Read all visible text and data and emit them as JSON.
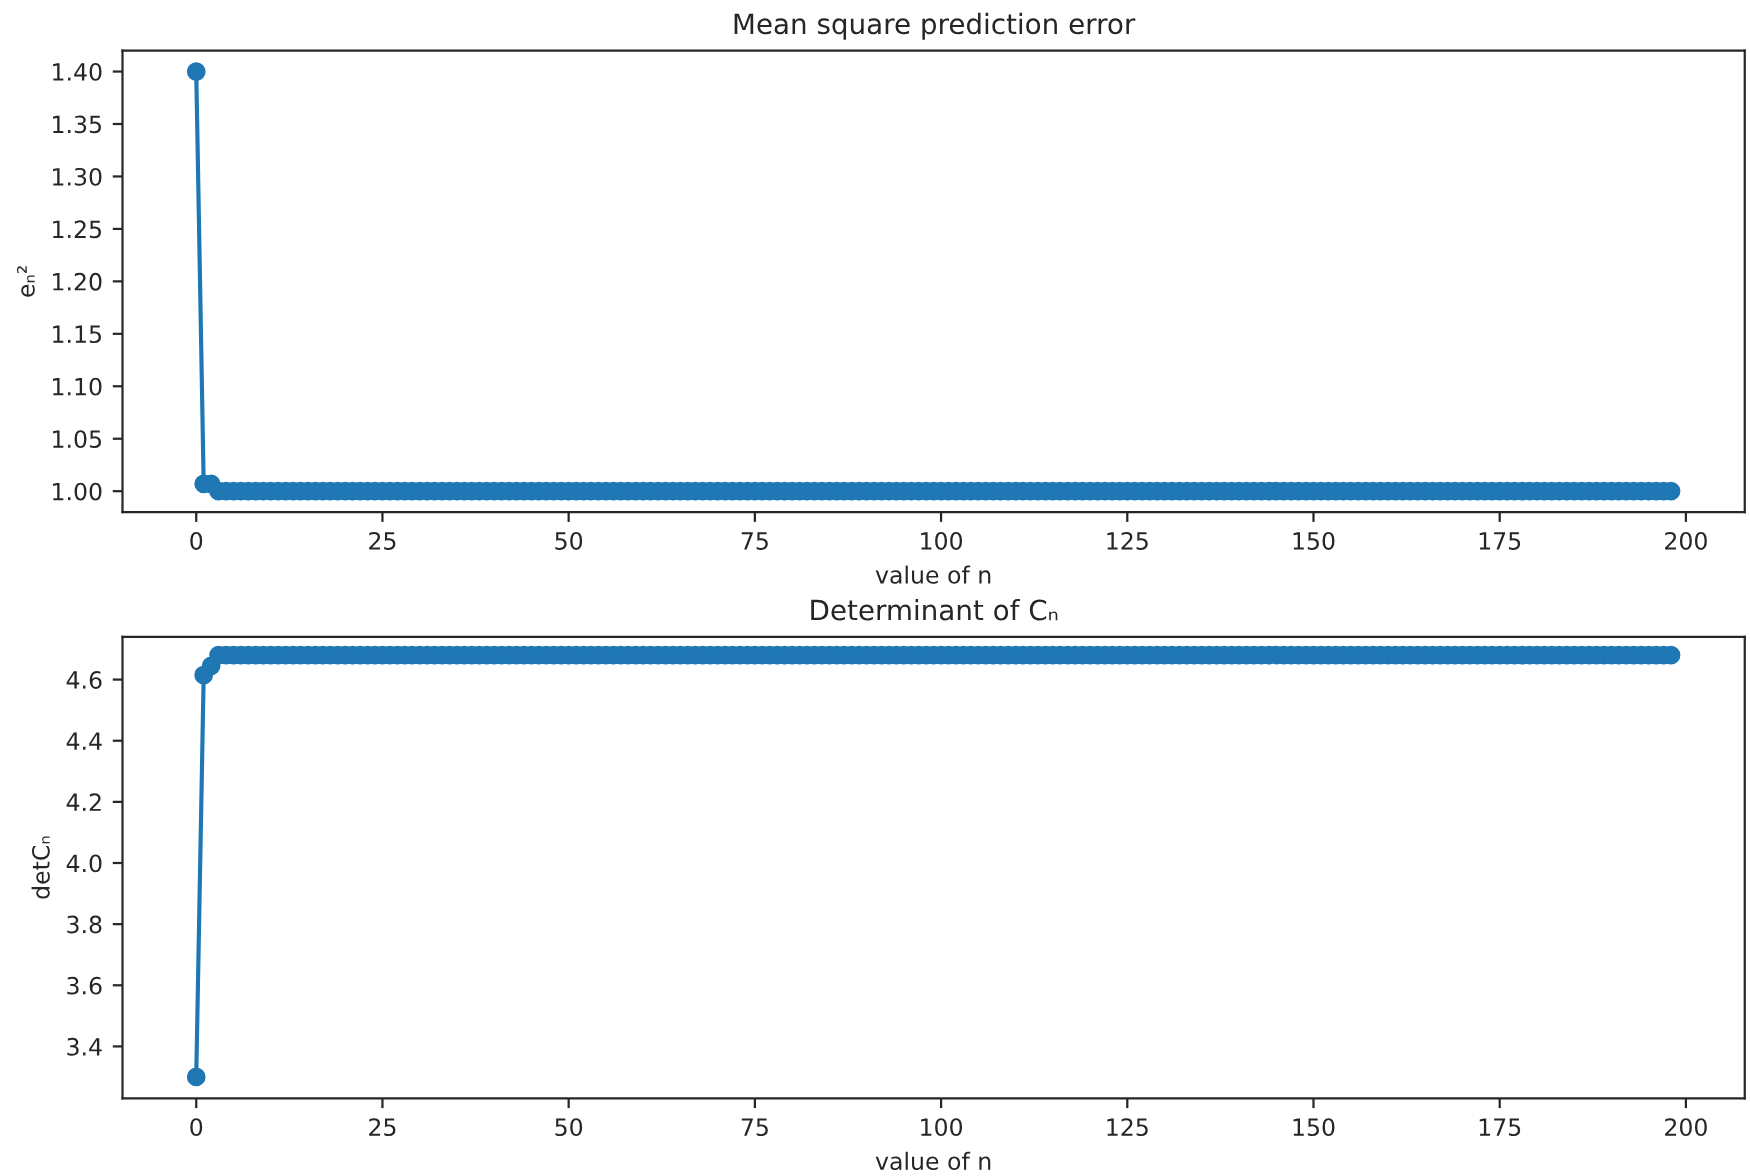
{
  "chart_data": [
    {
      "type": "line",
      "title": "Mean square prediction error",
      "xlabel": "value of n",
      "ylabel": "eₙ²",
      "marker": "circle",
      "line_style": "solid",
      "grid": false,
      "xlim": [
        -9.9,
        207.9
      ],
      "xticks": [
        0,
        25,
        50,
        75,
        100,
        125,
        150,
        175,
        200
      ],
      "ylim": [
        0.98,
        1.42
      ],
      "yticks": [
        {
          "value": 1.0,
          "label": "1.00"
        },
        {
          "value": 1.05,
          "label": "1.05"
        },
        {
          "value": 1.1,
          "label": "1.10"
        },
        {
          "value": 1.15,
          "label": "1.15"
        },
        {
          "value": 1.2,
          "label": "1.20"
        },
        {
          "value": 1.25,
          "label": "1.25"
        },
        {
          "value": 1.3,
          "label": "1.30"
        },
        {
          "value": 1.35,
          "label": "1.35"
        },
        {
          "value": 1.4,
          "label": "1.40"
        }
      ],
      "series": [
        {
          "color": "#1f77b4",
          "x": [
            0,
            1,
            2,
            3,
            4,
            5,
            6,
            7,
            8,
            9,
            10,
            11,
            12,
            13,
            14,
            15,
            16,
            17,
            18,
            19,
            20,
            21,
            22,
            23,
            24,
            25,
            26,
            27,
            28,
            29,
            30,
            31,
            32,
            33,
            34,
            35,
            36,
            37,
            38,
            39,
            40,
            41,
            42,
            43,
            44,
            45,
            46,
            47,
            48,
            49,
            50,
            51,
            52,
            53,
            54,
            55,
            56,
            57,
            58,
            59,
            60,
            61,
            62,
            63,
            64,
            65,
            66,
            67,
            68,
            69,
            70,
            71,
            72,
            73,
            74,
            75,
            76,
            77,
            78,
            79,
            80,
            81,
            82,
            83,
            84,
            85,
            86,
            87,
            88,
            89,
            90,
            91,
            92,
            93,
            94,
            95,
            96,
            97,
            98,
            99,
            100,
            101,
            102,
            103,
            104,
            105,
            106,
            107,
            108,
            109,
            110,
            111,
            112,
            113,
            114,
            115,
            116,
            117,
            118,
            119,
            120,
            121,
            122,
            123,
            124,
            125,
            126,
            127,
            128,
            129,
            130,
            131,
            132,
            133,
            134,
            135,
            136,
            137,
            138,
            139,
            140,
            141,
            142,
            143,
            144,
            145,
            146,
            147,
            148,
            149,
            150,
            151,
            152,
            153,
            154,
            155,
            156,
            157,
            158,
            159,
            160,
            161,
            162,
            163,
            164,
            165,
            166,
            167,
            168,
            169,
            170,
            171,
            172,
            173,
            174,
            175,
            176,
            177,
            178,
            179,
            180,
            181,
            182,
            183,
            184,
            185,
            186,
            187,
            188,
            189,
            190,
            191,
            192,
            193,
            194,
            195,
            196,
            197,
            198
          ],
          "values": [
            1.4,
            1.007,
            1.007,
            1.0,
            1.0,
            1.0,
            1.0,
            1.0,
            1.0,
            1.0,
            1.0,
            1.0,
            1.0,
            1.0,
            1.0,
            1.0,
            1.0,
            1.0,
            1.0,
            1.0,
            1.0,
            1.0,
            1.0,
            1.0,
            1.0,
            1.0,
            1.0,
            1.0,
            1.0,
            1.0,
            1.0,
            1.0,
            1.0,
            1.0,
            1.0,
            1.0,
            1.0,
            1.0,
            1.0,
            1.0,
            1.0,
            1.0,
            1.0,
            1.0,
            1.0,
            1.0,
            1.0,
            1.0,
            1.0,
            1.0,
            1.0,
            1.0,
            1.0,
            1.0,
            1.0,
            1.0,
            1.0,
            1.0,
            1.0,
            1.0,
            1.0,
            1.0,
            1.0,
            1.0,
            1.0,
            1.0,
            1.0,
            1.0,
            1.0,
            1.0,
            1.0,
            1.0,
            1.0,
            1.0,
            1.0,
            1.0,
            1.0,
            1.0,
            1.0,
            1.0,
            1.0,
            1.0,
            1.0,
            1.0,
            1.0,
            1.0,
            1.0,
            1.0,
            1.0,
            1.0,
            1.0,
            1.0,
            1.0,
            1.0,
            1.0,
            1.0,
            1.0,
            1.0,
            1.0,
            1.0,
            1.0,
            1.0,
            1.0,
            1.0,
            1.0,
            1.0,
            1.0,
            1.0,
            1.0,
            1.0,
            1.0,
            1.0,
            1.0,
            1.0,
            1.0,
            1.0,
            1.0,
            1.0,
            1.0,
            1.0,
            1.0,
            1.0,
            1.0,
            1.0,
            1.0,
            1.0,
            1.0,
            1.0,
            1.0,
            1.0,
            1.0,
            1.0,
            1.0,
            1.0,
            1.0,
            1.0,
            1.0,
            1.0,
            1.0,
            1.0,
            1.0,
            1.0,
            1.0,
            1.0,
            1.0,
            1.0,
            1.0,
            1.0,
            1.0,
            1.0,
            1.0,
            1.0,
            1.0,
            1.0,
            1.0,
            1.0,
            1.0,
            1.0,
            1.0,
            1.0,
            1.0,
            1.0,
            1.0,
            1.0,
            1.0,
            1.0,
            1.0,
            1.0,
            1.0,
            1.0,
            1.0,
            1.0,
            1.0,
            1.0,
            1.0,
            1.0,
            1.0,
            1.0,
            1.0,
            1.0,
            1.0,
            1.0,
            1.0,
            1.0,
            1.0,
            1.0,
            1.0,
            1.0,
            1.0,
            1.0,
            1.0,
            1.0,
            1.0,
            1.0,
            1.0,
            1.0,
            1.0,
            1.0,
            1.0
          ]
        }
      ]
    },
    {
      "type": "line",
      "title": "Determinant of Cₙ",
      "xlabel": "value of n",
      "ylabel": "detCₙ",
      "marker": "circle",
      "line_style": "solid",
      "grid": false,
      "xlim": [
        -9.9,
        207.9
      ],
      "xticks": [
        0,
        25,
        50,
        75,
        100,
        125,
        150,
        175,
        200
      ],
      "ylim": [
        3.23,
        4.74
      ],
      "yticks": [
        3.4,
        3.6,
        3.8,
        {
          "value": 4.0,
          "label": "4.0"
        },
        4.2,
        4.4,
        4.6
      ],
      "series": [
        {
          "color": "#1f77b4",
          "x": [
            0,
            1,
            2,
            3,
            4,
            5,
            6,
            7,
            8,
            9,
            10,
            11,
            12,
            13,
            14,
            15,
            16,
            17,
            18,
            19,
            20,
            21,
            22,
            23,
            24,
            25,
            26,
            27,
            28,
            29,
            30,
            31,
            32,
            33,
            34,
            35,
            36,
            37,
            38,
            39,
            40,
            41,
            42,
            43,
            44,
            45,
            46,
            47,
            48,
            49,
            50,
            51,
            52,
            53,
            54,
            55,
            56,
            57,
            58,
            59,
            60,
            61,
            62,
            63,
            64,
            65,
            66,
            67,
            68,
            69,
            70,
            71,
            72,
            73,
            74,
            75,
            76,
            77,
            78,
            79,
            80,
            81,
            82,
            83,
            84,
            85,
            86,
            87,
            88,
            89,
            90,
            91,
            92,
            93,
            94,
            95,
            96,
            97,
            98,
            99,
            100,
            101,
            102,
            103,
            104,
            105,
            106,
            107,
            108,
            109,
            110,
            111,
            112,
            113,
            114,
            115,
            116,
            117,
            118,
            119,
            120,
            121,
            122,
            123,
            124,
            125,
            126,
            127,
            128,
            129,
            130,
            131,
            132,
            133,
            134,
            135,
            136,
            137,
            138,
            139,
            140,
            141,
            142,
            143,
            144,
            145,
            146,
            147,
            148,
            149,
            150,
            151,
            152,
            153,
            154,
            155,
            156,
            157,
            158,
            159,
            160,
            161,
            162,
            163,
            164,
            165,
            166,
            167,
            168,
            169,
            170,
            171,
            172,
            173,
            174,
            175,
            176,
            177,
            178,
            179,
            180,
            181,
            182,
            183,
            184,
            185,
            186,
            187,
            188,
            189,
            190,
            191,
            192,
            193,
            194,
            195,
            196,
            197,
            198
          ],
          "values": [
            3.3,
            4.615,
            4.645,
            4.68,
            4.68,
            4.68,
            4.68,
            4.68,
            4.68,
            4.68,
            4.68,
            4.68,
            4.68,
            4.68,
            4.68,
            4.68,
            4.68,
            4.68,
            4.68,
            4.68,
            4.68,
            4.68,
            4.68,
            4.68,
            4.68,
            4.68,
            4.68,
            4.68,
            4.68,
            4.68,
            4.68,
            4.68,
            4.68,
            4.68,
            4.68,
            4.68,
            4.68,
            4.68,
            4.68,
            4.68,
            4.68,
            4.68,
            4.68,
            4.68,
            4.68,
            4.68,
            4.68,
            4.68,
            4.68,
            4.68,
            4.68,
            4.68,
            4.68,
            4.68,
            4.68,
            4.68,
            4.68,
            4.68,
            4.68,
            4.68,
            4.68,
            4.68,
            4.68,
            4.68,
            4.68,
            4.68,
            4.68,
            4.68,
            4.68,
            4.68,
            4.68,
            4.68,
            4.68,
            4.68,
            4.68,
            4.68,
            4.68,
            4.68,
            4.68,
            4.68,
            4.68,
            4.68,
            4.68,
            4.68,
            4.68,
            4.68,
            4.68,
            4.68,
            4.68,
            4.68,
            4.68,
            4.68,
            4.68,
            4.68,
            4.68,
            4.68,
            4.68,
            4.68,
            4.68,
            4.68,
            4.68,
            4.68,
            4.68,
            4.68,
            4.68,
            4.68,
            4.68,
            4.68,
            4.68,
            4.68,
            4.68,
            4.68,
            4.68,
            4.68,
            4.68,
            4.68,
            4.68,
            4.68,
            4.68,
            4.68,
            4.68,
            4.68,
            4.68,
            4.68,
            4.68,
            4.68,
            4.68,
            4.68,
            4.68,
            4.68,
            4.68,
            4.68,
            4.68,
            4.68,
            4.68,
            4.68,
            4.68,
            4.68,
            4.68,
            4.68,
            4.68,
            4.68,
            4.68,
            4.68,
            4.68,
            4.68,
            4.68,
            4.68,
            4.68,
            4.68,
            4.68,
            4.68,
            4.68,
            4.68,
            4.68,
            4.68,
            4.68,
            4.68,
            4.68,
            4.68,
            4.68,
            4.68,
            4.68,
            4.68,
            4.68,
            4.68,
            4.68,
            4.68,
            4.68,
            4.68,
            4.68,
            4.68,
            4.68,
            4.68,
            4.68,
            4.68,
            4.68,
            4.68,
            4.68,
            4.68,
            4.68,
            4.68,
            4.68,
            4.68,
            4.68,
            4.68,
            4.68,
            4.68,
            4.68,
            4.68,
            4.68,
            4.68,
            4.68,
            4.68,
            4.68,
            4.68,
            4.68,
            4.68,
            4.68
          ]
        }
      ]
    }
  ]
}
